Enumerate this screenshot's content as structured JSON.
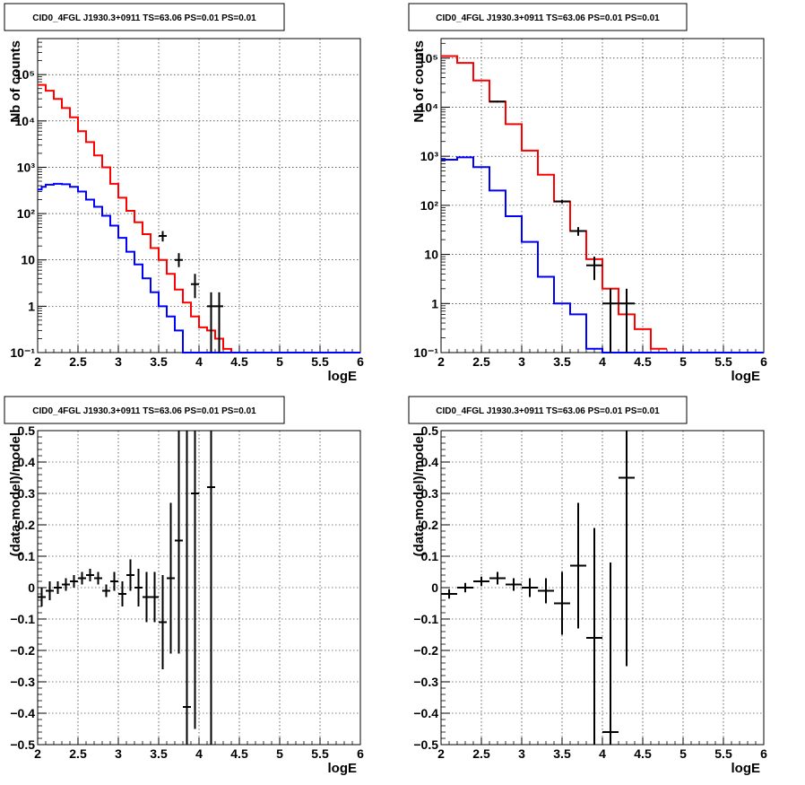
{
  "chart_data": [
    {
      "type": "line",
      "title": "CID0_4FGL J1930.3+0911 TS=63.06 PS=0.01 PS=0.01",
      "xlabel": "logE",
      "ylabel": "Nb of counts",
      "xlim": [
        2,
        6
      ],
      "ylim": [
        0.1,
        600000
      ],
      "yscale": "log",
      "grid": true,
      "x_ticks": [
        "2",
        "2.5",
        "3",
        "3.5",
        "4",
        "4.5",
        "5",
        "5.5",
        "6"
      ],
      "y_ticks": [
        {
          "value": 0.1,
          "label": "10⁻¹"
        },
        {
          "value": 1,
          "label": "1"
        },
        {
          "value": 10,
          "label": "10"
        },
        {
          "value": 100,
          "label": "10²"
        },
        {
          "value": 1000,
          "label": "10³"
        },
        {
          "value": 10000,
          "label": "10⁴"
        },
        {
          "value": 100000,
          "label": "10⁵"
        }
      ],
      "series": [
        {
          "color": "#ff0000",
          "style": "step",
          "edges": [
            2.0,
            2.1,
            2.2,
            2.3,
            2.4,
            2.5,
            2.6,
            2.7,
            2.8,
            2.9,
            3.0,
            3.1,
            3.2,
            3.3,
            3.4,
            3.5,
            3.6,
            3.7,
            3.8,
            3.9,
            4.0,
            4.1,
            4.2,
            4.3,
            4.4,
            4.5
          ],
          "values": [
            60000,
            45000,
            30000,
            19000,
            12000,
            6000,
            3500,
            1800,
            1000,
            440,
            220,
            115,
            65,
            36,
            18,
            10,
            5,
            2.3,
            1.2,
            0.6,
            0.35,
            0.3,
            0.2,
            0.12,
            0.1
          ]
        },
        {
          "color": "#0000ff",
          "style": "step",
          "edges": [
            2.0,
            2.05,
            2.1,
            2.2,
            2.3,
            2.4,
            2.5,
            2.6,
            2.7,
            2.8,
            2.9,
            3.0,
            3.1,
            3.2,
            3.3,
            3.4,
            3.5,
            3.6,
            3.7,
            3.8,
            3.9,
            4.0,
            4.1,
            4.2,
            4.3,
            4.4,
            4.5,
            5.0,
            5.5,
            6.0
          ],
          "values": [
            330,
            380,
            420,
            440,
            430,
            380,
            300,
            200,
            140,
            90,
            55,
            30,
            15,
            8,
            4,
            2,
            1,
            0.6,
            0.3,
            0.1,
            0.1,
            0.1,
            0.1,
            0.1,
            0.1,
            0.1,
            0.1,
            0.1,
            0.1
          ]
        },
        {
          "color": "#000000",
          "style": "errorbar",
          "x": [
            3.55,
            3.75,
            3.95,
            4.15,
            4.25
          ],
          "y": [
            33,
            10,
            3,
            1,
            1
          ],
          "ylow": [
            25,
            7,
            1.5,
            0.1,
            0.1
          ],
          "yhigh": [
            42,
            14,
            5,
            2,
            2
          ],
          "halfwidth": 0.05
        }
      ]
    },
    {
      "type": "line",
      "title": "CID0_4FGL J1930.3+0911 TS=63.06 PS=0.01 PS=0.01",
      "xlabel": "logE",
      "ylabel": "Nb of counts",
      "xlim": [
        2,
        6
      ],
      "ylim": [
        0.1,
        250000
      ],
      "yscale": "log",
      "grid": true,
      "x_ticks": [
        "2",
        "2.5",
        "3",
        "3.5",
        "4",
        "4.5",
        "5",
        "5.5",
        "6"
      ],
      "y_ticks": [
        {
          "value": 0.1,
          "label": "10⁻¹"
        },
        {
          "value": 1,
          "label": "1"
        },
        {
          "value": 10,
          "label": "10"
        },
        {
          "value": 100,
          "label": "10²"
        },
        {
          "value": 1000,
          "label": "10³"
        },
        {
          "value": 10000,
          "label": "10⁴"
        },
        {
          "value": 100000,
          "label": "10⁵"
        }
      ],
      "series": [
        {
          "color": "#ff0000",
          "style": "step",
          "edges": [
            2.0,
            2.2,
            2.4,
            2.6,
            2.8,
            3.0,
            3.2,
            3.4,
            3.6,
            3.8,
            4.0,
            4.2,
            4.4,
            4.6,
            4.8
          ],
          "values": [
            110000,
            80000,
            35000,
            13000,
            4500,
            1300,
            420,
            120,
            30,
            8,
            2,
            0.6,
            0.3,
            0.12
          ]
        },
        {
          "color": "#0000ff",
          "style": "step",
          "edges": [
            2.0,
            2.2,
            2.4,
            2.6,
            2.8,
            3.0,
            3.2,
            3.4,
            3.6,
            3.8,
            4.0,
            4.2,
            4.4,
            6.0
          ],
          "values": [
            850,
            950,
            600,
            200,
            60,
            18,
            3.5,
            1,
            0.6,
            0.12,
            0.1,
            0.1,
            0.1
          ]
        },
        {
          "color": "#000000",
          "style": "errorbar",
          "x": [
            2.7,
            3.5,
            3.7,
            3.9,
            4.1,
            4.3
          ],
          "y": [
            13000,
            120,
            30,
            6,
            1,
            1
          ],
          "ylow": [
            12500,
            110,
            24,
            3,
            0.1,
            0.1
          ],
          "yhigh": [
            13500,
            130,
            36,
            9,
            2,
            2
          ],
          "halfwidth": 0.1
        }
      ]
    },
    {
      "type": "scatter",
      "title": "CID0_4FGL J1930.3+0911 TS=63.06 PS=0.01 PS=0.01",
      "xlabel": "logE",
      "ylabel": "(data-model)/model",
      "xlim": [
        2,
        6
      ],
      "ylim": [
        -0.5,
        0.5
      ],
      "grid": true,
      "x_ticks": [
        "2",
        "2.5",
        "3",
        "3.5",
        "4",
        "4.5",
        "5",
        "5.5",
        "6"
      ],
      "y_ticks": [
        "−0.5",
        "−0.4",
        "−0.3",
        "−0.2",
        "−0.1",
        "0",
        "0.1",
        "0.2",
        "0.3",
        "0.4",
        "0.5"
      ],
      "series": [
        {
          "color": "#000000",
          "style": "errorbar",
          "halfwidth": 0.05,
          "x": [
            2.05,
            2.15,
            2.25,
            2.35,
            2.45,
            2.55,
            2.65,
            2.75,
            2.85,
            2.95,
            3.05,
            3.15,
            3.25,
            3.35,
            3.45,
            3.55,
            3.65,
            3.75,
            3.85,
            3.95,
            4.15
          ],
          "y": [
            -0.03,
            -0.01,
            0.0,
            0.01,
            0.02,
            0.03,
            0.04,
            0.03,
            -0.01,
            0.02,
            -0.02,
            0.04,
            0.0,
            -0.03,
            -0.03,
            -0.11,
            0.03,
            0.15,
            -0.38,
            0.3,
            0.32
          ],
          "err": [
            0.03,
            0.03,
            0.02,
            0.02,
            0.02,
            0.02,
            0.02,
            0.02,
            0.02,
            0.03,
            0.04,
            0.05,
            0.06,
            0.08,
            0.08,
            0.15,
            0.24,
            0.36,
            0.88,
            0.75,
            0.9
          ]
        }
      ]
    },
    {
      "type": "scatter",
      "title": "CID0_4FGL J1930.3+0911 TS=63.06 PS=0.01 PS=0.01",
      "xlabel": "logE",
      "ylabel": "(data-model)/model",
      "xlim": [
        2,
        6
      ],
      "ylim": [
        -0.5,
        0.5
      ],
      "grid": true,
      "x_ticks": [
        "2",
        "2.5",
        "3",
        "3.5",
        "4",
        "4.5",
        "5",
        "5.5",
        "6"
      ],
      "y_ticks": [
        "−0.5",
        "−0.4",
        "−0.3",
        "−0.2",
        "−0.1",
        "0",
        "0.1",
        "0.2",
        "0.3",
        "0.4",
        "0.5"
      ],
      "series": [
        {
          "color": "#000000",
          "style": "errorbar",
          "halfwidth": 0.1,
          "x": [
            2.1,
            2.3,
            2.5,
            2.7,
            2.9,
            3.1,
            3.3,
            3.5,
            3.7,
            3.9,
            4.1,
            4.3
          ],
          "y": [
            -0.02,
            0.0,
            0.02,
            0.03,
            0.01,
            0.0,
            -0.01,
            -0.05,
            0.07,
            -0.16,
            -0.46,
            0.35
          ],
          "err": [
            0.015,
            0.015,
            0.015,
            0.02,
            0.02,
            0.03,
            0.04,
            0.1,
            0.2,
            0.35,
            0.54,
            0.6
          ]
        }
      ]
    }
  ]
}
